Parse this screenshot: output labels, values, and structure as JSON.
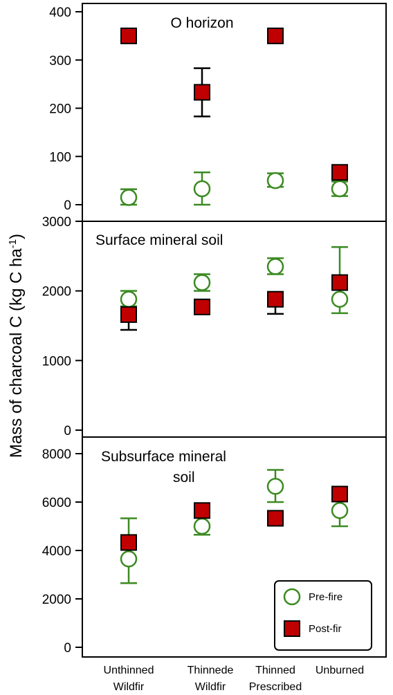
{
  "chart_data": {
    "type": "scatter",
    "ylabel": "Mass of charcoal C (kg C ha",
    "ylabel_superscript": "-1",
    "ylabel_close": ")",
    "categories": [
      [
        "Unthinned",
        "Wildfir"
      ],
      [
        "Thinnede",
        "Wildfir"
      ],
      [
        "Thinned",
        "Prescribed"
      ],
      [
        "Unburned",
        ""
      ]
    ],
    "legend": {
      "placement": "bottom-right of lowest panel",
      "entries": [
        {
          "label": "Pre-fire",
          "marker": "open-circle",
          "color": "#3b8a22"
        },
        {
          "label": "Post-fir",
          "marker": "filled-square",
          "color": "#c00000"
        }
      ]
    },
    "panels": [
      {
        "title": "O horizon",
        "ylim": [
          -15,
          425
        ],
        "yticks": [
          0,
          100,
          200,
          300,
          400
        ],
        "series": [
          {
            "name": "Pre-fire",
            "values": [
              15,
              33,
              50,
              33
            ],
            "err_low": [
              0,
              0,
              37,
              18
            ],
            "err_high": [
              32,
              67,
              65,
              48
            ]
          },
          {
            "name": "Post-fir",
            "values": [
              350,
              233,
              350,
              67
            ],
            "err_low": [
              null,
              183,
              null,
              null
            ],
            "err_high": [
              null,
              283,
              null,
              null
            ]
          }
        ]
      },
      {
        "title": "Surface mineral soil",
        "ylim": [
          -40,
          3120
        ],
        "yticks": [
          0,
          1000,
          2000,
          3000
        ],
        "series": [
          {
            "name": "Pre-fire",
            "values": [
              1880,
              2120,
              2350,
              1880
            ],
            "err_low": [
              1780,
              2000,
              2240,
              1680
            ],
            "err_high": [
              2000,
              2240,
              2470,
              2630
            ]
          },
          {
            "name": "Post-fir",
            "values": [
              1660,
              1770,
              1880,
              2120
            ],
            "err_low": [
              1440,
              null,
              1670,
              null
            ],
            "err_high": [
              null,
              null,
              null,
              null
            ]
          }
        ]
      },
      {
        "title": "Subsurface mineral",
        "title_line2": "soil",
        "ylim": [
          -300,
          8600
        ],
        "yticks": [
          0,
          2000,
          4000,
          6000,
          8000
        ],
        "series": [
          {
            "name": "Pre-fire",
            "values": [
              3650,
              5000,
              6650,
              5650
            ],
            "err_low": [
              2650,
              4650,
              6000,
              5000
            ],
            "err_high": [
              5330,
              null,
              7330,
              null
            ]
          },
          {
            "name": "Post-fir",
            "values": [
              4330,
              5650,
              5330,
              6330
            ],
            "err_low": [
              null,
              null,
              null,
              null
            ],
            "err_high": [
              null,
              null,
              null,
              null
            ]
          }
        ]
      }
    ],
    "colors": {
      "pre": "#3b8a22",
      "post_fill": "#c00000",
      "post_stroke": "#000000",
      "axis": "#000000"
    }
  }
}
